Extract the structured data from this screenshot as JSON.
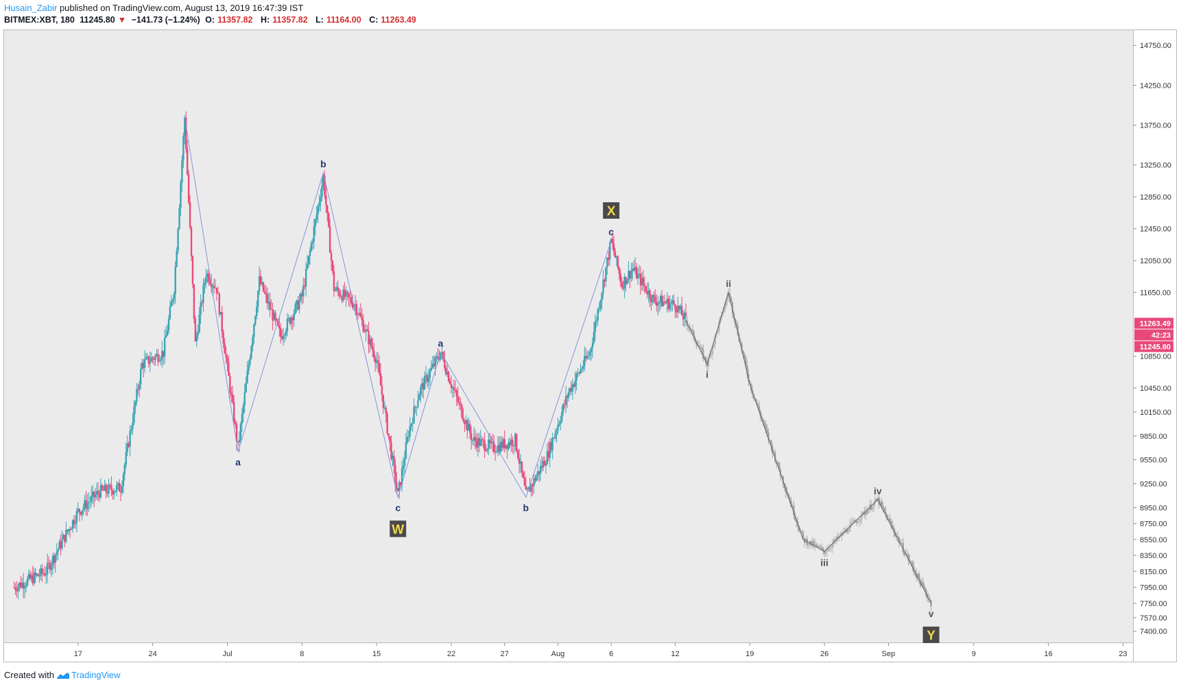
{
  "header": {
    "author": "Husain_Zabir",
    "published_text": "published on TradingView.com, August 13, 2019 16:47:39 IST",
    "symbol": "BITMEX:XBT, 180",
    "last_price": "11245.80",
    "arrow": "▼",
    "change": "−141.73 (−1.24%)",
    "open_label": "O:",
    "open": "11357.82",
    "high_label": "H:",
    "high": "11357.82",
    "low_label": "L:",
    "low": "11164.00",
    "close_label": "C:",
    "close": "11263.49"
  },
  "footer": {
    "created_with": "Created with",
    "brand": "TradingView"
  },
  "price_tags": {
    "close": "11263.49",
    "countdown": "42:23",
    "last": "11245.80"
  },
  "chart_data": {
    "type": "candlestick",
    "x_tick_labels": [
      "17",
      "24",
      "Jul",
      "8",
      "15",
      "22",
      "27",
      "Aug",
      "6",
      "12",
      "19",
      "26",
      "Sep",
      "9",
      "16",
      "23"
    ],
    "y_tick_labels": [
      "14750.00",
      "14250.00",
      "13750.00",
      "13250.00",
      "12850.00",
      "12450.00",
      "12050.00",
      "11650.00",
      "10850.00",
      "10450.00",
      "10150.00",
      "9850.00",
      "9550.00",
      "9250.00",
      "8950.00",
      "8750.00",
      "8550.00",
      "8350.00",
      "8150.00",
      "7950.00",
      "7750.00",
      "7570.00",
      "7400.00"
    ],
    "y_range": [
      7250,
      14950
    ],
    "price_path": [
      [
        "2019-06-11",
        7950
      ],
      [
        "2019-06-14",
        8150
      ],
      [
        "2019-06-17",
        8900
      ],
      [
        "2019-06-19",
        9150
      ],
      [
        "2019-06-21",
        9200
      ],
      [
        "2019-06-23",
        10750
      ],
      [
        "2019-06-25",
        10900
      ],
      [
        "2019-06-26",
        11700
      ],
      [
        "2019-06-27",
        13850
      ],
      [
        "2019-06-28",
        11000
      ],
      [
        "2019-06-29",
        11900
      ],
      [
        "2019-06-30",
        11700
      ],
      [
        "2019-07-02",
        9700
      ],
      [
        "2019-07-04",
        11800
      ],
      [
        "2019-07-06",
        11100
      ],
      [
        "2019-07-08",
        11600
      ],
      [
        "2019-07-10",
        13100
      ],
      [
        "2019-07-11",
        11700
      ],
      [
        "2019-07-13",
        11500
      ],
      [
        "2019-07-15",
        10800
      ],
      [
        "2019-07-17",
        9100
      ],
      [
        "2019-07-18",
        9900
      ],
      [
        "2019-07-19",
        10400
      ],
      [
        "2019-07-21",
        10900
      ],
      [
        "2019-07-22",
        10500
      ],
      [
        "2019-07-24",
        9800
      ],
      [
        "2019-07-26",
        9700
      ],
      [
        "2019-07-28",
        9800
      ],
      [
        "2019-07-29",
        9100
      ],
      [
        "2019-07-31",
        9600
      ],
      [
        "2019-08-02",
        10400
      ],
      [
        "2019-08-04",
        10900
      ],
      [
        "2019-08-06",
        12300
      ],
      [
        "2019-08-07",
        11750
      ],
      [
        "2019-08-08",
        11950
      ],
      [
        "2019-08-10",
        11550
      ],
      [
        "2019-08-12",
        11500
      ],
      [
        "2019-08-13",
        11300
      ]
    ],
    "projected_path": [
      [
        "2019-08-13",
        11300
      ],
      [
        "2019-08-15",
        10750
      ],
      [
        "2019-08-17",
        11650
      ],
      [
        "2019-08-19",
        10500
      ],
      [
        "2019-08-24",
        8550
      ],
      [
        "2019-08-26",
        8400
      ],
      [
        "2019-08-31",
        9050
      ],
      [
        "2019-09-05",
        7750
      ]
    ],
    "wave_labels": [
      {
        "text": "a",
        "date": "2019-07-02",
        "price": 9650
      },
      {
        "text": "b",
        "date": "2019-07-10",
        "price": 13150
      },
      {
        "text": "c",
        "date": "2019-07-17",
        "price": 9080
      },
      {
        "text": "a",
        "date": "2019-07-21",
        "price": 10900
      },
      {
        "text": "b",
        "date": "2019-07-29",
        "price": 9080
      },
      {
        "text": "c",
        "date": "2019-08-06",
        "price": 12300
      },
      {
        "text": "i",
        "date": "2019-08-15",
        "price": 10750
      },
      {
        "text": "ii",
        "date": "2019-08-17",
        "price": 11650
      },
      {
        "text": "iii",
        "date": "2019-08-26",
        "price": 8390
      },
      {
        "text": "iv",
        "date": "2019-08-31",
        "price": 9050
      },
      {
        "text": "v",
        "date": "2019-09-05",
        "price": 7750
      }
    ],
    "wave_boxes": [
      {
        "text": "W",
        "date": "2019-07-17",
        "price": 9080
      },
      {
        "text": "X",
        "date": "2019-08-06",
        "price": 12300
      },
      {
        "text": "Y",
        "date": "2019-09-05",
        "price": 7750
      }
    ],
    "colors": {
      "up": "#3aa3b3",
      "down": "#e8497a",
      "wave_line": "#7f96d6",
      "label": "#1f3a6e",
      "box_bg": "#4a4a4a",
      "box_text": "#f0d84a",
      "projection": "#9a9a9a",
      "tag": "#e8497a"
    }
  }
}
